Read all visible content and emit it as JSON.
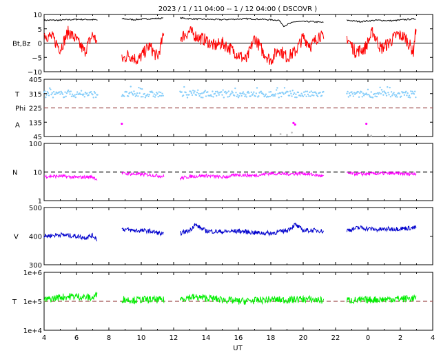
{
  "title": "2023 /   1 / 11   04:00 --  1 / 12   04:00 ( DSCOVR )",
  "xlabel": "UT",
  "x_ticks": [
    "4",
    "6",
    "8",
    "10",
    "12",
    "14",
    "16",
    "18",
    "20",
    "22",
    "0",
    "2",
    "4"
  ],
  "colors": {
    "bt": "#000000",
    "bz": "#ff0000",
    "temp_mag": "#87cefa",
    "ref_line": "#a05050",
    "ref_line_black": "#000000",
    "density": "#ff00ff",
    "speed": "#0000cd",
    "temperature": "#00ee00",
    "gray": "#c0c0c0"
  },
  "chart_data": [
    {
      "type": "line",
      "id": "mag",
      "ylabel": "Bt,Bz",
      "ylim": [
        -10,
        10
      ],
      "y_ticks": [
        "10",
        "5",
        "0",
        "−5",
        "−10"
      ],
      "zero_line": 0,
      "data_gaps_hours": [
        [
          7.3,
          8.8
        ],
        [
          11.4,
          12.4
        ],
        [
          21.3,
          22.7
        ]
      ],
      "series": [
        {
          "key": "bt",
          "x": [
            4.0,
            5.0,
            6.0,
            7.0,
            7.3,
            8.8,
            9.5,
            10.5,
            11.4,
            12.4,
            13.0,
            14.0,
            15.0,
            16.0,
            16.5,
            17.5,
            18.5,
            18.8,
            19.5,
            20.5,
            21.3,
            22.7,
            23.5,
            0.5,
            1.5,
            2.5,
            3.0
          ],
          "values": [
            8,
            8,
            8.3,
            8.2,
            8,
            8.5,
            8.2,
            8.5,
            8.7,
            8.8,
            8.5,
            8.3,
            8.2,
            8.4,
            8.5,
            8.3,
            8,
            6,
            7.5,
            7.5,
            7.2,
            8,
            7.5,
            8,
            7.8,
            8.3,
            8.5
          ]
        },
        {
          "key": "bz",
          "x": [
            4.0,
            4.5,
            5.0,
            5.5,
            6.0,
            6.5,
            7.0,
            7.3,
            8.8,
            9.2,
            9.8,
            10.5,
            11.0,
            11.4,
            12.4,
            13.0,
            13.5,
            14.0,
            14.5,
            15.0,
            15.5,
            16.0,
            16.5,
            17.0,
            17.5,
            18.0,
            18.5,
            19.0,
            19.5,
            20.0,
            20.5,
            21.0,
            21.3,
            22.7,
            23.2,
            23.8,
            0.3,
            0.8,
            1.3,
            1.8,
            2.3,
            2.8,
            3.0
          ],
          "values": [
            3,
            2,
            -2,
            4,
            1,
            -3,
            3,
            0,
            -6,
            -4,
            -6,
            -1,
            -5,
            3,
            2,
            4,
            2,
            1,
            -1,
            0,
            -2,
            -4,
            -6,
            2,
            -3,
            -6,
            -2,
            -5,
            -3,
            2,
            -1,
            3,
            1,
            2,
            -3,
            -2,
            4,
            -2,
            0,
            3,
            2,
            -3,
            7
          ]
        }
      ]
    },
    {
      "type": "scatter",
      "id": "plasma_angles",
      "ylabel_top": "T",
      "ylabel_mid": "Phi",
      "ylabel_bot": "A",
      "ylim": [
        45,
        405
      ],
      "y_ticks": [
        "405",
        "315",
        "225",
        "135",
        "45"
      ],
      "ref_value": 225,
      "series": [
        {
          "key": "phi",
          "color_key": "temp_mag",
          "x_range": [
            [
              4.0,
              7.3
            ],
            [
              8.8,
              11.4
            ],
            [
              12.4,
              21.3
            ],
            [
              22.7,
              3.0
            ]
          ],
          "center": 310,
          "spread": 20
        },
        {
          "key": "theta",
          "color_key": "density",
          "points": [
            [
              8.8,
              125
            ],
            [
              19.5,
              120
            ],
            [
              19.4,
              130
            ],
            [
              23.9,
              125
            ]
          ]
        }
      ]
    },
    {
      "type": "line",
      "id": "density",
      "ylabel": "N",
      "scale": "log",
      "ylim": [
        1,
        100
      ],
      "y_ticks": [
        "100",
        "10",
        "1"
      ],
      "ref_value": 10,
      "series": [
        {
          "key": "density",
          "x": [
            4.0,
            5.0,
            6.0,
            7.0,
            7.3,
            8.8,
            9.5,
            10.5,
            11.4,
            12.4,
            13.0,
            14.0,
            15.0,
            16.0,
            17.0,
            18.0,
            19.0,
            20.0,
            21.0,
            21.3,
            22.7,
            23.5,
            0.5,
            1.5,
            2.5,
            3.0
          ],
          "values": [
            7,
            7.2,
            6.5,
            6.8,
            5.5,
            9,
            8.5,
            8,
            7,
            6,
            7,
            7.5,
            6.5,
            8,
            7.5,
            9,
            8.5,
            9,
            7.5,
            7,
            9,
            8.5,
            8.8,
            9,
            8.5,
            9
          ]
        }
      ]
    },
    {
      "type": "line",
      "id": "speed",
      "ylabel": "V",
      "ylim": [
        300,
        500
      ],
      "y_ticks": [
        "500",
        "400",
        "300"
      ],
      "series": [
        {
          "key": "speed",
          "x": [
            4.0,
            5.0,
            6.0,
            6.5,
            7.0,
            7.3,
            8.8,
            9.5,
            10.5,
            11.0,
            11.4,
            12.4,
            13.0,
            13.3,
            14.0,
            15.0,
            16.0,
            17.0,
            18.0,
            19.0,
            19.5,
            20.0,
            21.0,
            21.3,
            22.7,
            23.5,
            0.5,
            1.5,
            2.5,
            3.0
          ],
          "values": [
            400,
            405,
            400,
            395,
            402,
            388,
            425,
            420,
            418,
            412,
            405,
            410,
            420,
            440,
            418,
            415,
            418,
            412,
            410,
            420,
            440,
            420,
            420,
            415,
            420,
            430,
            423,
            425,
            428,
            430
          ]
        }
      ]
    },
    {
      "type": "line",
      "id": "temperature",
      "ylabel": "T",
      "scale": "log",
      "ylim": [
        10000,
        1000000
      ],
      "y_ticks": [
        "1e+6",
        "1e+5",
        "1e+4"
      ],
      "ref_value": 100000,
      "series": [
        {
          "key": "temperature",
          "x": [
            4.0,
            5.0,
            6.0,
            7.0,
            7.3,
            8.8,
            9.5,
            10.5,
            11.4,
            12.4,
            13.0,
            14.0,
            15.0,
            16.0,
            17.0,
            18.0,
            19.0,
            20.0,
            21.0,
            21.3,
            22.7,
            23.5,
            0.5,
            1.5,
            2.5,
            3.0
          ],
          "values": [
            110000,
            140000,
            150000,
            130000,
            180000,
            120000,
            110000,
            115000,
            110000,
            120000,
            140000,
            130000,
            115000,
            100000,
            105000,
            115000,
            110000,
            120000,
            110000,
            105000,
            110000,
            108000,
            115000,
            120000,
            125000,
            130000
          ]
        }
      ]
    }
  ]
}
